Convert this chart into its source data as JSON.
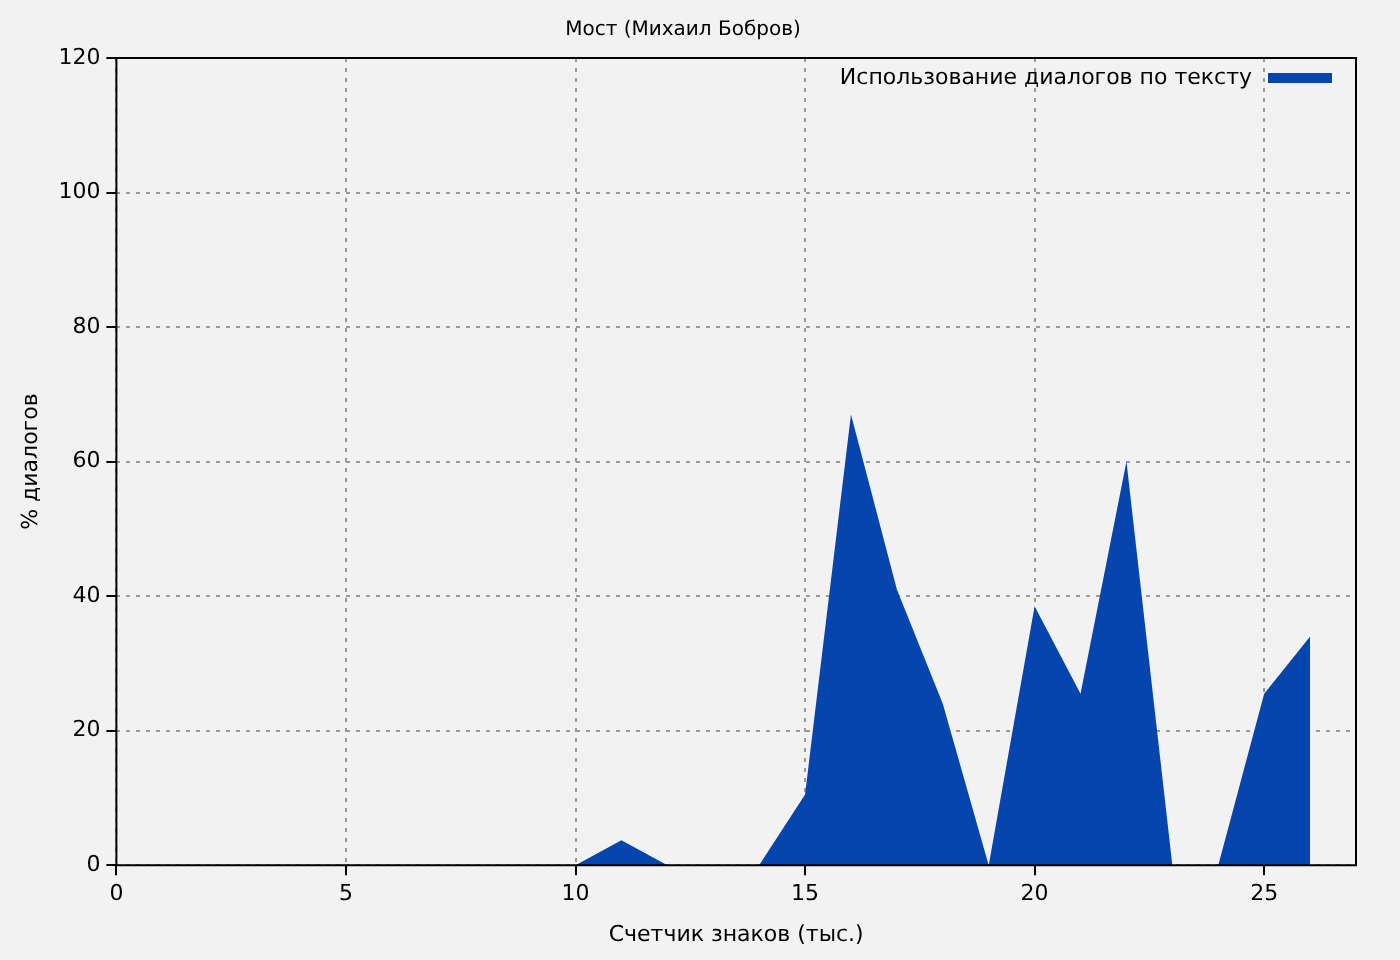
{
  "chart_data": {
    "type": "area",
    "title": "Мост (Михаил Бобров)",
    "xlabel": "Счетчик знаков (тыс.)",
    "ylabel": "% диалогов",
    "x": [
      0,
      1,
      2,
      3,
      4,
      5,
      6,
      7,
      8,
      9,
      10,
      11,
      12,
      13,
      14,
      15,
      16,
      17,
      18,
      19,
      20,
      21,
      22,
      23,
      24,
      25,
      26
    ],
    "series": [
      {
        "name": "Использование диалогов по тексту",
        "color": "#0645ad",
        "values": [
          0,
          0,
          0,
          0,
          0,
          0,
          0,
          0,
          0,
          0,
          0,
          3.7,
          0,
          0,
          0,
          10.5,
          67,
          41,
          24,
          0,
          38.5,
          25.5,
          60,
          0,
          0,
          25.5,
          34
        ]
      }
    ],
    "xlim": [
      0,
      27
    ],
    "xticks": [
      0,
      5,
      10,
      15,
      20,
      25
    ],
    "ylim": [
      0,
      120
    ],
    "yticks": [
      0,
      20,
      40,
      60,
      80,
      100,
      120
    ],
    "grid": true,
    "legend": "top right"
  }
}
